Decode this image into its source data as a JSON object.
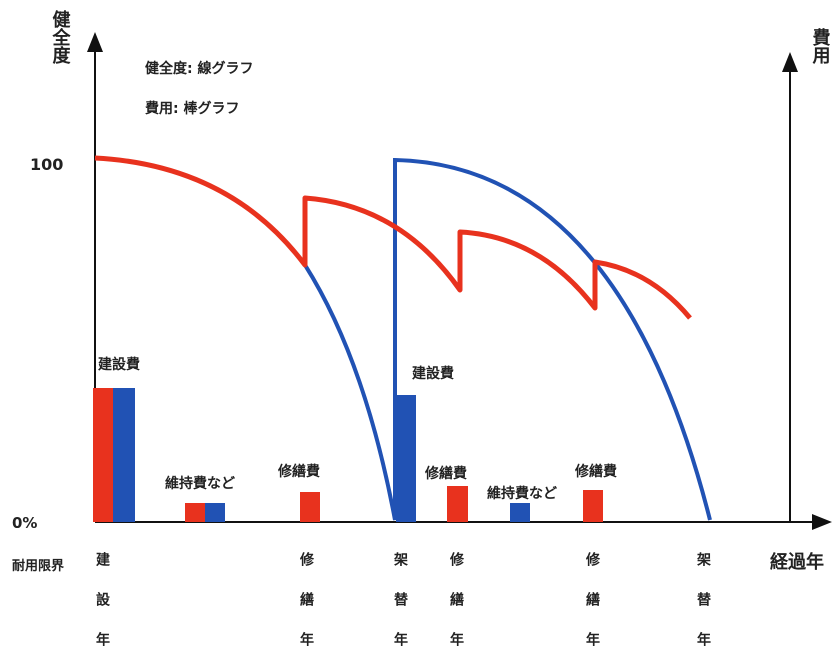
{
  "axes": {
    "y_label": "健全度",
    "y2_label": "費用",
    "x_label": "経過年",
    "y_top": "100",
    "y_zero": "0%",
    "limit_label": "耐用限界"
  },
  "legend": [
    "健全度: 線グラフ",
    "費用: 棒グラフ"
  ],
  "bar_labels": [
    "建設費",
    "維持費など",
    "修繕費",
    "建設費",
    "修繕費",
    "維持費など",
    "修繕費"
  ],
  "year_markers": [
    "建設年",
    "修繕年",
    "架替年",
    "修繕年",
    "修繕年",
    "架替年"
  ]
}
